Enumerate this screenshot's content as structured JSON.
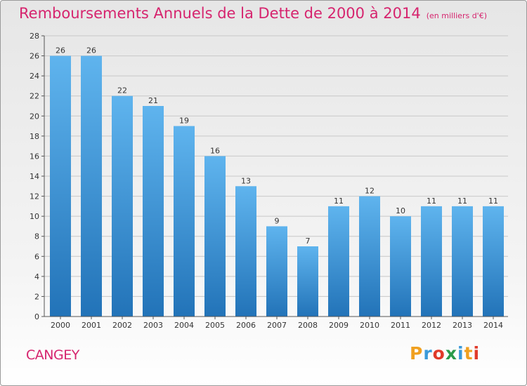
{
  "header": {
    "title": "Remboursements Annuels de la Dette de 2000 à 2014",
    "unit": "(en milliers d'€)"
  },
  "footer": {
    "commune": "CANGEY",
    "logo": "Proxiti",
    "logo_letters": [
      {
        "char": "P",
        "color": "#f0a020"
      },
      {
        "char": "r",
        "color": "#3a9ad9"
      },
      {
        "char": "o",
        "color": "#e03a2a"
      },
      {
        "char": "x",
        "color": "#2a9a4a"
      },
      {
        "char": "i",
        "color": "#3a9ad9"
      },
      {
        "char": "t",
        "color": "#f0a020"
      },
      {
        "char": "i",
        "color": "#e03a2a"
      }
    ]
  },
  "colors": {
    "title": "#d6246e",
    "bar_top": "#5fb4ee",
    "bar_bottom": "#2273b8",
    "grid": "#c8c8c8"
  },
  "chart_data": {
    "type": "bar",
    "title": "Remboursements Annuels de la Dette de 2000 à 2014",
    "xlabel": "",
    "ylabel": "",
    "categories": [
      "2000",
      "2001",
      "2002",
      "2003",
      "2004",
      "2005",
      "2006",
      "2007",
      "2008",
      "2009",
      "2010",
      "2011",
      "2012",
      "2013",
      "2014"
    ],
    "values": [
      26,
      26,
      22,
      21,
      19,
      16,
      13,
      9,
      7,
      11,
      12,
      10,
      11,
      11,
      11
    ],
    "ylim": [
      0,
      28
    ],
    "yticks": [
      0,
      2,
      4,
      6,
      8,
      10,
      12,
      14,
      16,
      18,
      20,
      22,
      24,
      26,
      28
    ],
    "grid": true,
    "data_labels": true
  }
}
